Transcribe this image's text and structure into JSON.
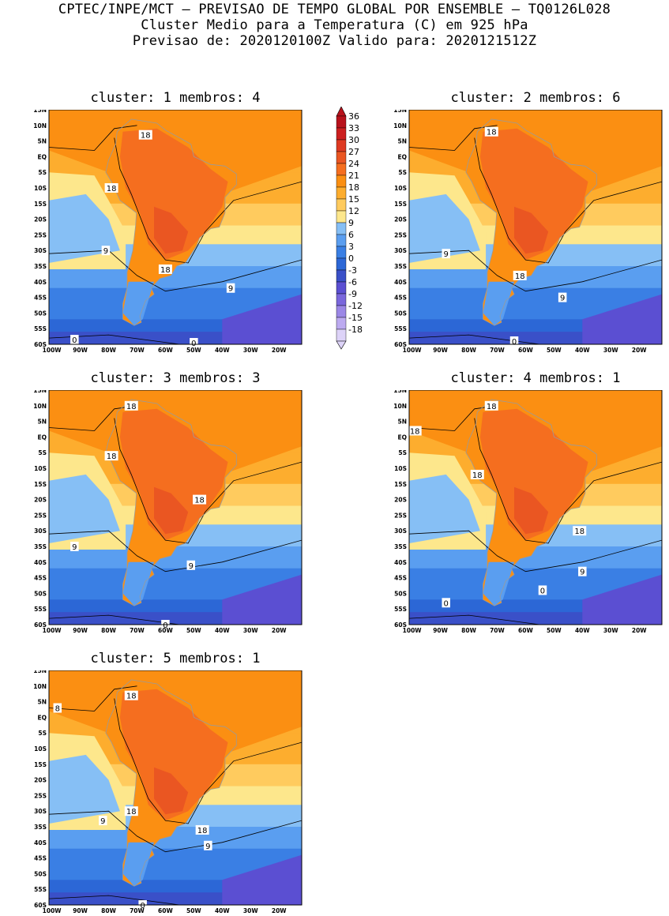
{
  "header": {
    "line1": "CPTEC/INPE/MCT – PREVISAO DE TEMPO GLOBAL POR ENSEMBLE – TQ0126L028",
    "line2": "Cluster Medio para a Temperatura (C) em 925 hPa",
    "line3": "Previsao de: 2020120100Z   Valido para: 2020121512Z"
  },
  "panels": [
    {
      "title": "cluster: 1   membros: 4",
      "labels": [
        {
          "t": "18",
          "x": -67,
          "y": 7
        },
        {
          "t": "18",
          "x": -79,
          "y": -10
        },
        {
          "t": "9",
          "x": -81,
          "y": -30
        },
        {
          "t": "18",
          "x": -60,
          "y": -36
        },
        {
          "t": "9",
          "x": -37,
          "y": -42
        },
        {
          "t": "0",
          "x": -92,
          "y": -58.5
        },
        {
          "t": "0",
          "x": -50,
          "y": -59.5
        }
      ]
    },
    {
      "title": "cluster: 2   membros: 6",
      "labels": [
        {
          "t": "18",
          "x": -72,
          "y": 8
        },
        {
          "t": "9",
          "x": -88,
          "y": -31
        },
        {
          "t": "18",
          "x": -62,
          "y": -38
        },
        {
          "t": "9",
          "x": -47,
          "y": -45
        },
        {
          "t": "0",
          "x": -64,
          "y": -59
        }
      ]
    },
    {
      "title": "cluster: 3   membros: 3",
      "labels": [
        {
          "t": "18",
          "x": -72,
          "y": 10
        },
        {
          "t": "18",
          "x": -79,
          "y": -6
        },
        {
          "t": "18",
          "x": -48,
          "y": -20
        },
        {
          "t": "9",
          "x": -92,
          "y": -35
        },
        {
          "t": "9",
          "x": -51,
          "y": -41
        },
        {
          "t": "0",
          "x": -60,
          "y": -60
        }
      ]
    },
    {
      "title": "cluster: 4   membros: 1",
      "labels": [
        {
          "t": "18",
          "x": -72,
          "y": 10
        },
        {
          "t": "18",
          "x": -99,
          "y": 2
        },
        {
          "t": "18",
          "x": -77,
          "y": -12
        },
        {
          "t": "18",
          "x": -41,
          "y": -30
        },
        {
          "t": "9",
          "x": -40,
          "y": -43
        },
        {
          "t": "0",
          "x": -54,
          "y": -49
        },
        {
          "t": "0",
          "x": -88,
          "y": -53
        }
      ]
    },
    {
      "title": "cluster: 5   membros: 1",
      "labels": [
        {
          "t": "18",
          "x": -72,
          "y": 7
        },
        {
          "t": "8",
          "x": -98,
          "y": 3
        },
        {
          "t": "18",
          "x": -72,
          "y": -30
        },
        {
          "t": "9",
          "x": -82,
          "y": -33
        },
        {
          "t": "18",
          "x": -47,
          "y": -36
        },
        {
          "t": "9",
          "x": -45,
          "y": -41
        },
        {
          "t": "0",
          "x": -68,
          "y": -60
        }
      ]
    }
  ],
  "axes": {
    "lat_labels": [
      "15N",
      "10N",
      "5N",
      "EQ",
      "5S",
      "10S",
      "15S",
      "20S",
      "25S",
      "30S",
      "35S",
      "40S",
      "45S",
      "50S",
      "55S",
      "60S"
    ],
    "lon_labels": [
      "100W",
      "90W",
      "80W",
      "70W",
      "60W",
      "50W",
      "40W",
      "30W",
      "20W"
    ],
    "lon_range": [
      -101,
      -12
    ],
    "lat_range": [
      -60,
      15
    ]
  },
  "colorbar": {
    "levels": [
      "36",
      "33",
      "30",
      "27",
      "24",
      "21",
      "18",
      "15",
      "12",
      "9",
      "6",
      "3",
      "0",
      "-3",
      "-6",
      "-9",
      "-12",
      "-15",
      "-18"
    ],
    "colors": [
      "#b8121c",
      "#cc1f1f",
      "#de3a22",
      "#ea5622",
      "#f56e1f",
      "#fb8f12",
      "#fdad2e",
      "#ffcb5e",
      "#fde78c",
      "#86bff5",
      "#5a9ef0",
      "#3a7fe4",
      "#2c67d6",
      "#3a50c8",
      "#5b4fd2",
      "#7a67dc",
      "#9b87e6",
      "#bcaaf0",
      "#ddd3f8"
    ]
  }
}
